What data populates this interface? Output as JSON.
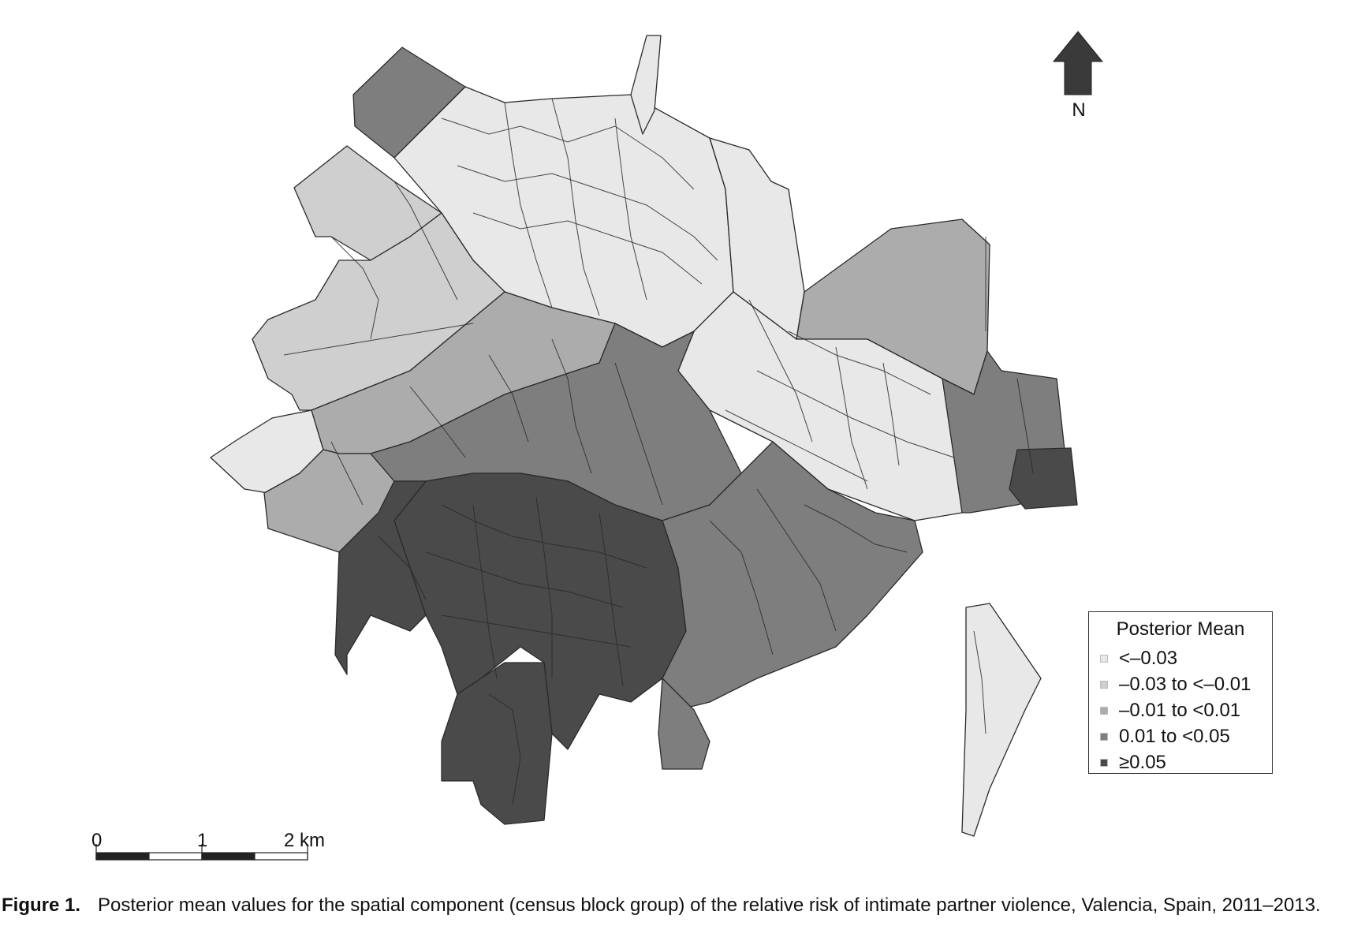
{
  "legend": {
    "title": "Posterior Mean",
    "classes": [
      {
        "label": "<–0.03",
        "color": "#e8e8e8"
      },
      {
        "label": "–0.03 to <–0.01",
        "color": "#cfcfcf"
      },
      {
        "label": "–0.01 to <0.01",
        "color": "#acacac"
      },
      {
        "label": "0.01 to <0.05",
        "color": "#7e7e7e"
      },
      {
        "label": "≥0.05",
        "color": "#4a4a4a"
      }
    ]
  },
  "north_arrow": {
    "label": "N",
    "icon": "north-arrow-icon"
  },
  "scale_bar": {
    "ticks": [
      "0",
      "1",
      "2 km"
    ]
  },
  "caption": {
    "label": "Figure 1.",
    "text": "Posterior mean values for the spatial component (census block group) of the relative risk of intimate partner violence, Valencia, Spain, 2011–2013."
  },
  "map": {
    "subject": "Valencia, Spain census block groups",
    "zones": [
      {
        "id": "northwest-fringe",
        "class": 1
      },
      {
        "id": "north-center",
        "class": 0
      },
      {
        "id": "north-spire",
        "class": 0
      },
      {
        "id": "northeast",
        "class": 0
      },
      {
        "id": "east-port",
        "class": 2
      },
      {
        "id": "east-center",
        "class": 0
      },
      {
        "id": "west-lobe",
        "class": 1
      },
      {
        "id": "far-west-tip",
        "class": 0
      },
      {
        "id": "west-middle",
        "class": 2
      },
      {
        "id": "center-ring",
        "class": 3
      },
      {
        "id": "south-core",
        "class": 4
      },
      {
        "id": "southwest-core",
        "class": 4
      },
      {
        "id": "south-strip",
        "class": 4
      },
      {
        "id": "southeast",
        "class": 3
      },
      {
        "id": "east-coast-strip",
        "class": 3
      },
      {
        "id": "coast-dark",
        "class": 4
      },
      {
        "id": "south-coast",
        "class": 0
      },
      {
        "id": "nw-dark-lobe",
        "class": 3
      },
      {
        "id": "sw-outer",
        "class": 2
      },
      {
        "id": "se-appendix",
        "class": 3
      }
    ]
  }
}
